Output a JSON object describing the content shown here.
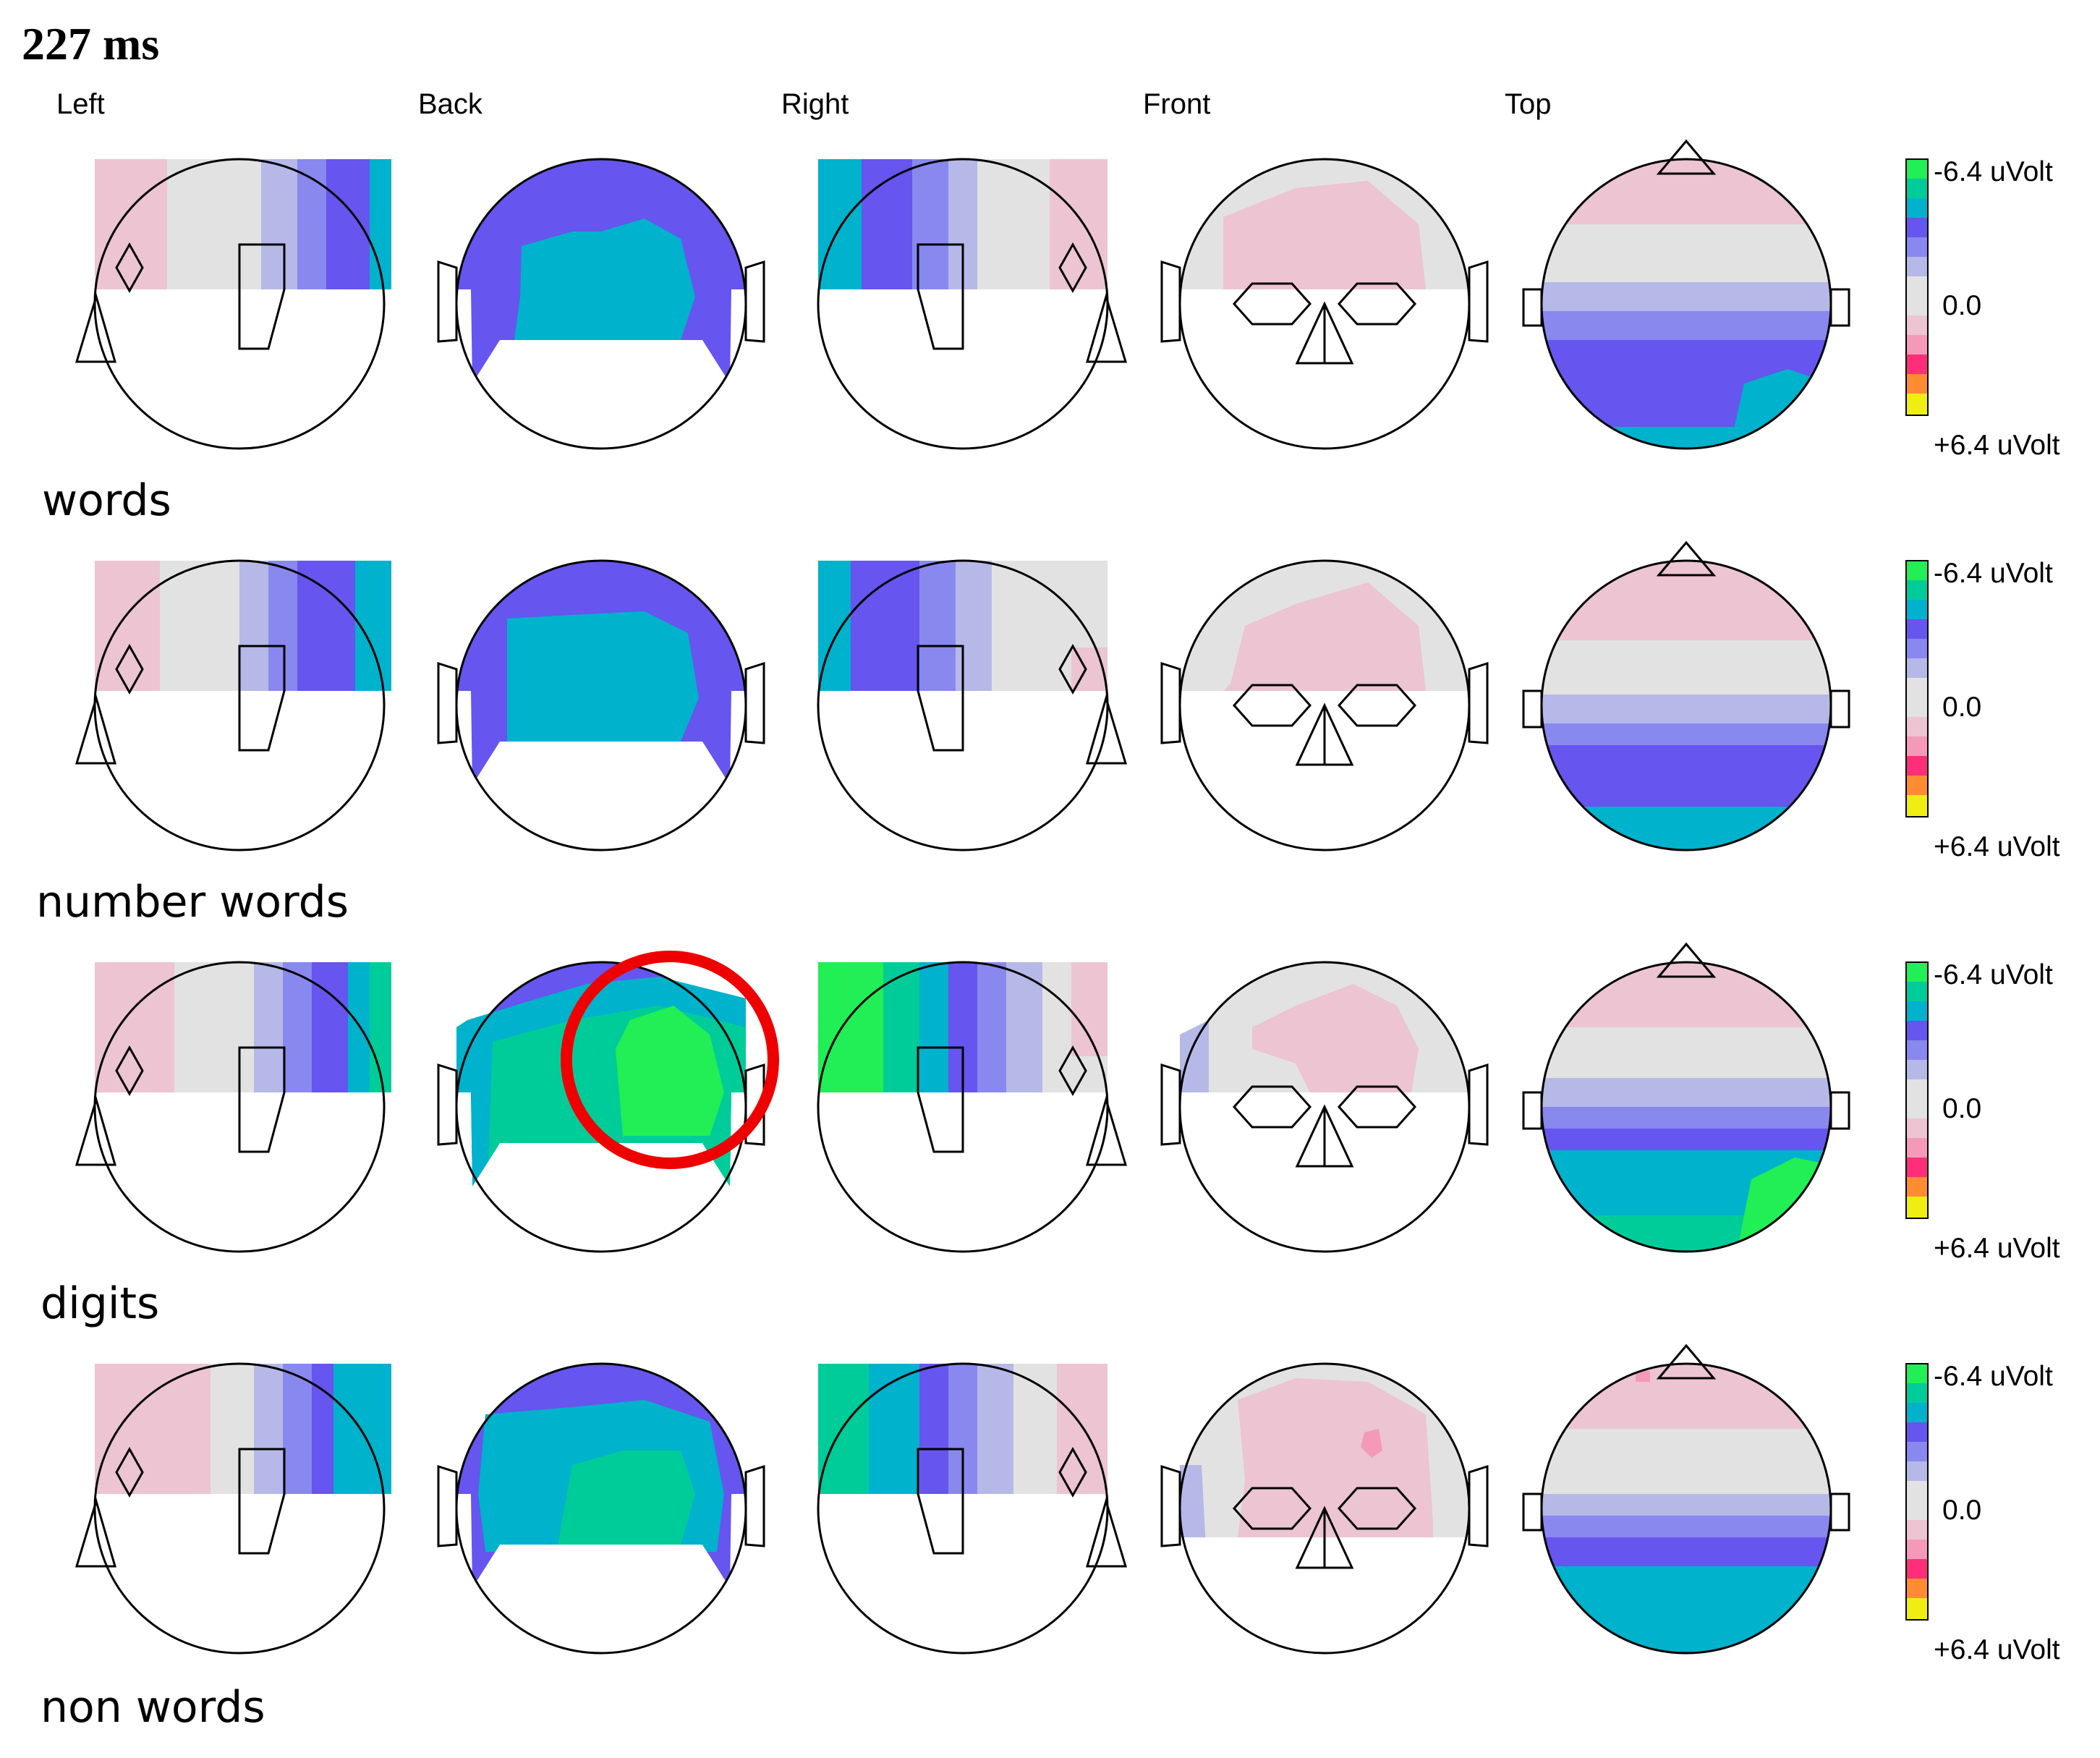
{
  "figure": {
    "time_label": "227 ms",
    "views": [
      "Left",
      "Back",
      "Right",
      "Front",
      "Top"
    ],
    "colorbar": {
      "top_label": "-6.4 uVolt",
      "mid_label": "0.0",
      "bottom_label": "+6.4 uVolt"
    },
    "conditions": [
      {
        "label": "words"
      },
      {
        "label": "number words"
      },
      {
        "label": "digits"
      },
      {
        "label": "non words"
      }
    ],
    "palette": {
      "green": "#22ee55",
      "teal": "#00cc99",
      "cyan": "#00b2cc",
      "blue_dark": "#6655ee",
      "blue_mid": "#8888ee",
      "blue_light": "#b6b8e8",
      "grey": "#e2e2e2",
      "pink_light": "#ecc4d2",
      "pink": "#f49ab8",
      "magenta": "#ff2e78",
      "orange": "#ff8c33",
      "yellow": "#eeee11",
      "highlight": "#ee0000"
    }
  }
}
